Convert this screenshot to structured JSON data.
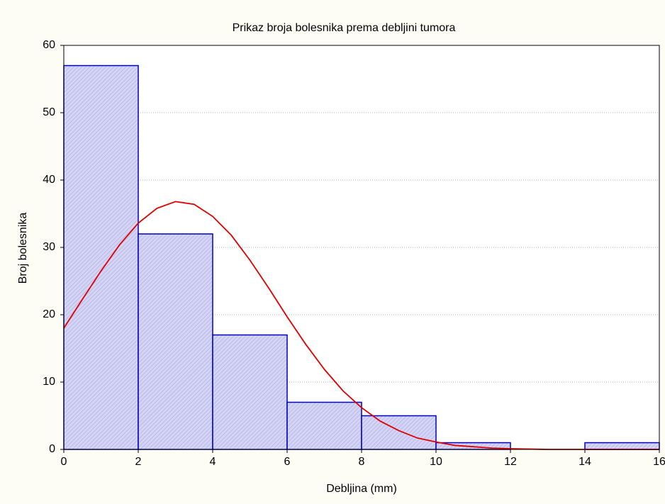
{
  "chart_data": {
    "type": "histogram",
    "title": "Prikaz broja bolesnika prema debljini tumora",
    "xlabel": "Debljina (mm)",
    "ylabel": "Broj bolesnika",
    "bins": [
      0,
      2,
      4,
      6,
      8,
      10,
      12,
      14,
      16
    ],
    "values": [
      57,
      32,
      17,
      7,
      5,
      1,
      0,
      1
    ],
    "color": "#c8c8f0",
    "edgecolor": "#0000c8",
    "curve": {
      "color": "#e00000",
      "x": [
        0,
        0.5,
        1,
        1.5,
        2,
        2.5,
        3,
        3.5,
        4,
        4.5,
        5,
        5.5,
        6,
        6.5,
        7,
        7.5,
        8,
        8.5,
        9,
        9.5,
        10,
        10.5,
        11,
        11.5,
        12,
        13,
        14,
        15,
        16
      ],
      "values": [
        18.0,
        22.3,
        26.5,
        30.4,
        33.6,
        35.8,
        36.8,
        36.4,
        34.6,
        31.8,
        28.1,
        24.0,
        19.7,
        15.6,
        11.9,
        8.7,
        6.2,
        4.2,
        2.8,
        1.7,
        1.1,
        0.6,
        0.4,
        0.2,
        0.1,
        0,
        0,
        0,
        0
      ]
    },
    "xlim": [
      0,
      16
    ],
    "xticks": [
      0,
      2,
      4,
      6,
      8,
      10,
      12,
      14,
      16
    ],
    "ylim": [
      0,
      60
    ],
    "yticks": [
      0,
      10,
      20,
      30,
      40,
      50,
      60
    ],
    "grid": true
  }
}
